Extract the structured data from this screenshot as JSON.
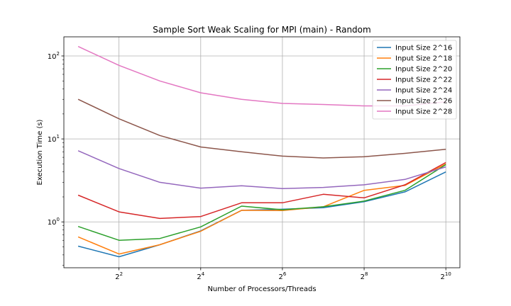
{
  "chart_data": {
    "type": "line",
    "title": "Sample Sort Weak Scaling for MPI (main) - Random",
    "xlabel": "Number of Processors/Threads",
    "ylabel": "Execution Time (s)",
    "x_scale": "log2",
    "y_scale": "log10",
    "x": [
      2,
      4,
      8,
      16,
      32,
      64,
      128,
      256,
      512,
      1024
    ],
    "x_ticks": [
      {
        "value": 4,
        "base": "2",
        "exp": "2"
      },
      {
        "value": 16,
        "base": "2",
        "exp": "4"
      },
      {
        "value": 64,
        "base": "2",
        "exp": "6"
      },
      {
        "value": 256,
        "base": "2",
        "exp": "8"
      },
      {
        "value": 1024,
        "base": "2",
        "exp": "10"
      }
    ],
    "y_ticks": [
      {
        "value": 1,
        "base": "10",
        "exp": "0"
      },
      {
        "value": 10,
        "base": "10",
        "exp": "1"
      },
      {
        "value": 100,
        "base": "10",
        "exp": "2"
      }
    ],
    "xlim": [
      1.57,
      1300
    ],
    "ylim": [
      0.28,
      170
    ],
    "grid": true,
    "legend_position": "top-right",
    "series": [
      {
        "name": "Input Size 2^16",
        "color": "#1f77b4",
        "values": [
          0.51,
          0.38,
          0.53,
          0.78,
          1.38,
          1.42,
          1.48,
          1.75,
          2.3,
          4.0
        ]
      },
      {
        "name": "Input Size 2^18",
        "color": "#ff7f0e",
        "values": [
          0.66,
          0.41,
          0.53,
          0.77,
          1.38,
          1.37,
          1.52,
          2.4,
          2.75,
          5.0
        ]
      },
      {
        "name": "Input Size 2^20",
        "color": "#2ca02c",
        "values": [
          0.88,
          0.6,
          0.63,
          0.87,
          1.55,
          1.4,
          1.52,
          1.78,
          2.4,
          4.9
        ]
      },
      {
        "name": "Input Size 2^22",
        "color": "#d62728",
        "values": [
          2.1,
          1.32,
          1.1,
          1.16,
          1.7,
          1.7,
          2.15,
          1.95,
          2.8,
          5.2
        ]
      },
      {
        "name": "Input Size 2^24",
        "color": "#9467bd",
        "values": [
          7.2,
          4.4,
          3.0,
          2.55,
          2.72,
          2.52,
          2.6,
          2.8,
          3.25,
          4.6
        ]
      },
      {
        "name": "Input Size 2^26",
        "color": "#8c564b",
        "values": [
          30,
          17.5,
          11,
          8.0,
          7.0,
          6.2,
          5.9,
          6.1,
          6.7,
          7.5
        ]
      },
      {
        "name": "Input Size 2^28",
        "color": "#e377c2",
        "values": [
          130,
          77,
          50,
          36,
          30,
          26.8,
          26,
          25,
          25,
          28
        ]
      }
    ]
  }
}
